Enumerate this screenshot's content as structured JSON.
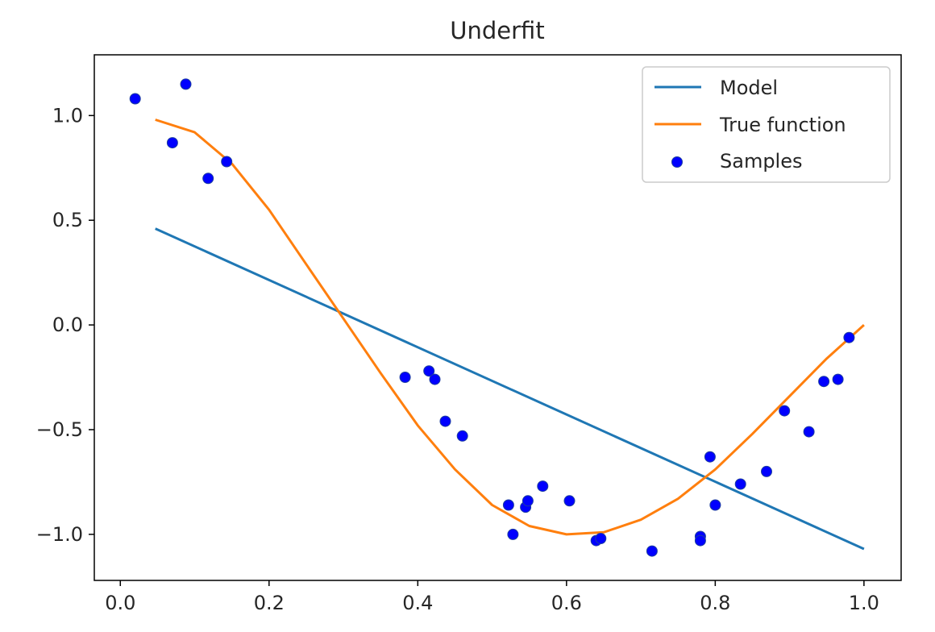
{
  "chart_data": {
    "type": "line",
    "title": "Underfit",
    "xlabel": "",
    "ylabel": "",
    "xlim": [
      -0.035,
      1.05
    ],
    "ylim": [
      -1.22,
      1.29
    ],
    "x_ticks": [
      0.0,
      0.2,
      0.4,
      0.6,
      0.8,
      1.0
    ],
    "x_tick_labels": [
      "0.0",
      "0.2",
      "0.4",
      "0.6",
      "0.8",
      "1.0"
    ],
    "y_ticks": [
      1.0,
      0.5,
      0.0,
      -0.5,
      -1.0
    ],
    "y_tick_labels": [
      "1.0",
      "0.5",
      "0.0",
      "−0.5",
      "−1.0"
    ],
    "grid": false,
    "legend_position": "top-right",
    "colors": {
      "model": "#1f77b4",
      "true_function": "#ff7f0e",
      "samples": "#0000ff"
    },
    "series": [
      {
        "name": "Model",
        "kind": "line",
        "x": [
          0.047,
          1.0
        ],
        "y": [
          0.46,
          -1.07
        ]
      },
      {
        "name": "True function",
        "kind": "line",
        "x": [
          0.047,
          0.1,
          0.15,
          0.2,
          0.25,
          0.3,
          0.35,
          0.4,
          0.45,
          0.5,
          0.55,
          0.6,
          0.65,
          0.7,
          0.75,
          0.8,
          0.85,
          0.9,
          0.95,
          1.0
        ],
        "y": [
          0.98,
          0.92,
          0.77,
          0.55,
          0.29,
          0.03,
          -0.23,
          -0.48,
          -0.69,
          -0.86,
          -0.96,
          -1.0,
          -0.99,
          -0.93,
          -0.83,
          -0.69,
          -0.52,
          -0.34,
          -0.16,
          0.0
        ]
      },
      {
        "name": "Samples",
        "kind": "scatter",
        "x": [
          0.02,
          0.07,
          0.088,
          0.118,
          0.143,
          0.383,
          0.415,
          0.423,
          0.437,
          0.46,
          0.522,
          0.528,
          0.545,
          0.548,
          0.568,
          0.604,
          0.64,
          0.646,
          0.715,
          0.78,
          0.78,
          0.793,
          0.8,
          0.834,
          0.869,
          0.893,
          0.926,
          0.946,
          0.965,
          0.98
        ],
        "y": [
          1.08,
          0.87,
          1.15,
          0.7,
          0.78,
          -0.25,
          -0.22,
          -0.26,
          -0.46,
          -0.53,
          -0.86,
          -1.0,
          -0.87,
          -0.84,
          -0.77,
          -0.84,
          -1.03,
          -1.02,
          -1.08,
          -1.01,
          -1.03,
          -0.63,
          -0.86,
          -0.76,
          -0.7,
          -0.41,
          -0.51,
          -0.27,
          -0.26,
          -0.06
        ]
      }
    ]
  }
}
